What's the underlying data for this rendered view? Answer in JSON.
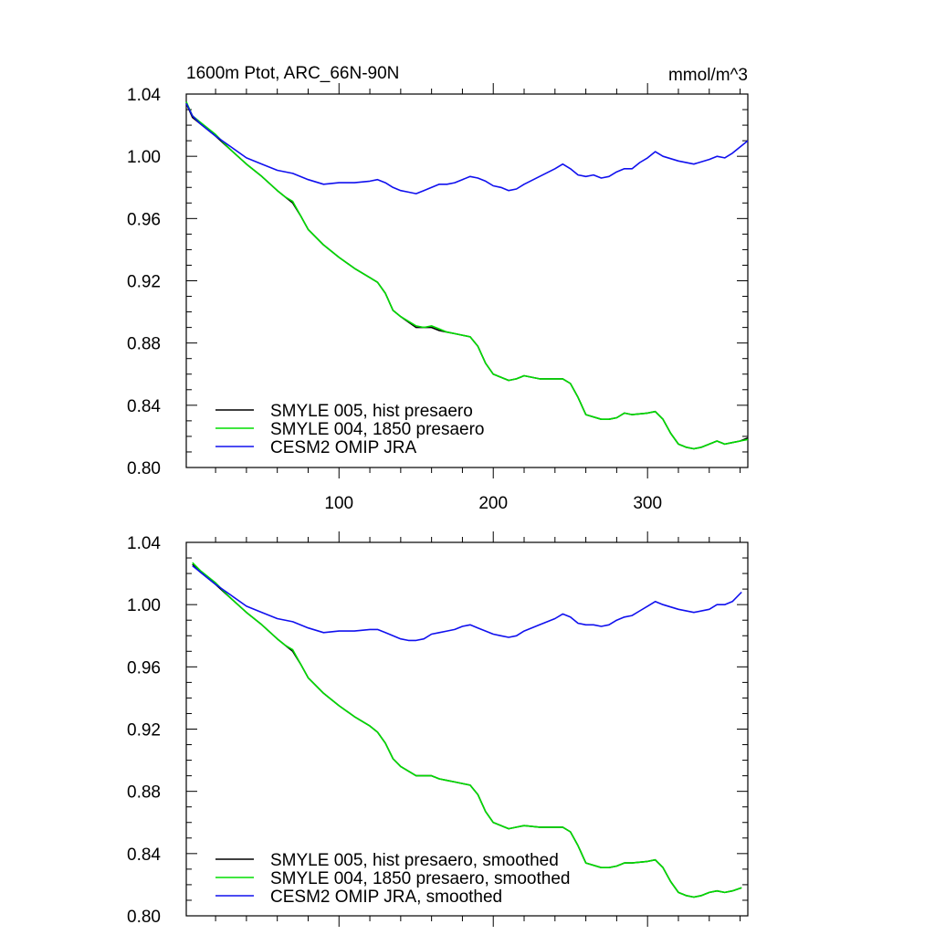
{
  "chart_data": [
    {
      "type": "line",
      "title_left": "1600m Ptot, ARC_66N-90N",
      "title_right": "mmol/m^3",
      "xlim": [
        1,
        365
      ],
      "ylim": [
        0.8,
        1.04
      ],
      "xticks": [
        100,
        200,
        300
      ],
      "xtick_labels": [
        "100",
        "200",
        "300"
      ],
      "yticks": [
        0.8,
        0.84,
        0.88,
        0.92,
        0.96,
        1.0,
        1.04
      ],
      "ytick_labels": [
        "0.80",
        "0.84",
        "0.88",
        "0.92",
        "0.96",
        "1.00",
        "1.04"
      ],
      "legend_placement": "bottom-left",
      "series": [
        {
          "name": "SMYLE 005, hist presaero",
          "color": "#000000",
          "x": [
            1,
            5,
            10,
            20,
            30,
            40,
            50,
            60,
            65,
            70,
            75,
            80,
            90,
            100,
            110,
            120,
            125,
            130,
            135,
            140,
            150,
            155,
            160,
            165,
            170,
            175,
            180,
            185,
            190,
            195,
            200,
            210,
            215,
            220,
            230,
            240,
            245,
            250,
            255,
            260,
            270,
            275,
            280,
            285,
            290,
            300,
            305,
            310,
            315,
            320,
            325,
            330,
            335,
            340,
            345,
            350,
            355,
            360,
            365
          ],
          "y": [
            1.034,
            1.025,
            1.021,
            1.013,
            1.004,
            0.995,
            0.987,
            0.978,
            0.974,
            0.97,
            0.962,
            0.953,
            0.943,
            0.935,
            0.928,
            0.922,
            0.919,
            0.912,
            0.901,
            0.897,
            0.89,
            0.89,
            0.89,
            0.888,
            0.887,
            0.886,
            0.885,
            0.884,
            0.878,
            0.867,
            0.86,
            0.856,
            0.857,
            0.859,
            0.857,
            0.857,
            0.857,
            0.854,
            0.845,
            0.834,
            0.831,
            0.831,
            0.832,
            0.835,
            0.834,
            0.835,
            0.836,
            0.831,
            0.822,
            0.815,
            0.813,
            0.812,
            0.813,
            0.815,
            0.817,
            0.815,
            0.816,
            0.817,
            0.819
          ]
        },
        {
          "name": "SMYLE 004, 1850 presaero",
          "color": "#00dd00",
          "x": [
            1,
            5,
            10,
            20,
            30,
            40,
            50,
            60,
            65,
            70,
            75,
            80,
            90,
            100,
            110,
            120,
            125,
            130,
            135,
            140,
            150,
            155,
            160,
            165,
            170,
            175,
            180,
            185,
            190,
            195,
            200,
            210,
            215,
            220,
            230,
            240,
            245,
            250,
            255,
            260,
            270,
            275,
            280,
            285,
            290,
            300,
            305,
            310,
            315,
            320,
            325,
            330,
            335,
            340,
            345,
            350,
            355,
            360,
            365
          ],
          "y": [
            1.035,
            1.026,
            1.022,
            1.014,
            1.004,
            0.995,
            0.987,
            0.978,
            0.974,
            0.971,
            0.962,
            0.953,
            0.943,
            0.935,
            0.928,
            0.922,
            0.919,
            0.912,
            0.901,
            0.897,
            0.891,
            0.89,
            0.891,
            0.889,
            0.887,
            0.886,
            0.885,
            0.884,
            0.878,
            0.867,
            0.86,
            0.856,
            0.857,
            0.859,
            0.857,
            0.857,
            0.857,
            0.854,
            0.845,
            0.834,
            0.831,
            0.831,
            0.832,
            0.835,
            0.834,
            0.835,
            0.836,
            0.831,
            0.822,
            0.815,
            0.813,
            0.812,
            0.813,
            0.815,
            0.817,
            0.815,
            0.816,
            0.817,
            0.818
          ]
        },
        {
          "name": "CESM2 OMIP JRA",
          "color": "#1010ee",
          "x": [
            1,
            5,
            10,
            20,
            30,
            40,
            50,
            60,
            70,
            80,
            90,
            100,
            110,
            120,
            125,
            130,
            135,
            140,
            145,
            150,
            155,
            160,
            165,
            170,
            175,
            180,
            185,
            190,
            195,
            200,
            205,
            210,
            215,
            220,
            230,
            240,
            245,
            250,
            255,
            260,
            265,
            270,
            275,
            280,
            285,
            290,
            295,
            300,
            305,
            310,
            320,
            330,
            340,
            345,
            350,
            355,
            360,
            365
          ],
          "y": [
            1.034,
            1.026,
            1.021,
            1.013,
            1.006,
            0.999,
            0.995,
            0.991,
            0.989,
            0.985,
            0.982,
            0.983,
            0.983,
            0.984,
            0.985,
            0.983,
            0.98,
            0.978,
            0.977,
            0.976,
            0.978,
            0.98,
            0.982,
            0.982,
            0.983,
            0.985,
            0.987,
            0.986,
            0.984,
            0.981,
            0.98,
            0.978,
            0.979,
            0.982,
            0.987,
            0.992,
            0.995,
            0.992,
            0.988,
            0.987,
            0.988,
            0.986,
            0.987,
            0.99,
            0.992,
            0.992,
            0.996,
            0.999,
            1.003,
            1.0,
            0.997,
            0.995,
            0.998,
            1.0,
            0.999,
            1.002,
            1.006,
            1.01
          ]
        }
      ]
    },
    {
      "type": "line",
      "title_left": "",
      "title_right": "",
      "xlim": [
        1,
        365
      ],
      "ylim": [
        0.8,
        1.04
      ],
      "xticks": [
        100,
        200,
        300
      ],
      "xtick_labels": [
        "",
        "",
        ""
      ],
      "yticks": [
        0.8,
        0.84,
        0.88,
        0.92,
        0.96,
        1.0,
        1.04
      ],
      "ytick_labels": [
        "0.80",
        "0.84",
        "0.88",
        "0.92",
        "0.96",
        "1.00",
        "1.04"
      ],
      "legend_placement": "bottom-left",
      "series": [
        {
          "name": "SMYLE 005, hist presaero, smoothed",
          "color": "#000000",
          "x": [
            5,
            10,
            20,
            30,
            40,
            50,
            60,
            65,
            70,
            75,
            80,
            90,
            100,
            110,
            120,
            125,
            130,
            135,
            140,
            150,
            155,
            160,
            165,
            170,
            175,
            180,
            185,
            190,
            195,
            200,
            210,
            215,
            220,
            230,
            240,
            245,
            250,
            255,
            260,
            270,
            275,
            280,
            285,
            290,
            300,
            305,
            310,
            315,
            320,
            325,
            330,
            335,
            340,
            345,
            350,
            355,
            361
          ],
          "y": [
            1.026,
            1.021,
            1.013,
            1.004,
            0.995,
            0.987,
            0.978,
            0.974,
            0.97,
            0.962,
            0.953,
            0.943,
            0.935,
            0.928,
            0.922,
            0.918,
            0.911,
            0.901,
            0.896,
            0.89,
            0.89,
            0.89,
            0.888,
            0.887,
            0.886,
            0.885,
            0.884,
            0.878,
            0.867,
            0.86,
            0.856,
            0.857,
            0.858,
            0.857,
            0.857,
            0.857,
            0.854,
            0.845,
            0.834,
            0.831,
            0.831,
            0.832,
            0.834,
            0.834,
            0.835,
            0.836,
            0.831,
            0.822,
            0.815,
            0.813,
            0.812,
            0.813,
            0.815,
            0.816,
            0.815,
            0.816,
            0.818
          ]
        },
        {
          "name": "SMYLE 004, 1850 presaero, smoothed",
          "color": "#00dd00",
          "x": [
            5,
            10,
            20,
            30,
            40,
            50,
            60,
            65,
            70,
            75,
            80,
            90,
            100,
            110,
            120,
            125,
            130,
            135,
            140,
            150,
            155,
            160,
            165,
            170,
            175,
            180,
            185,
            190,
            195,
            200,
            210,
            215,
            220,
            230,
            240,
            245,
            250,
            255,
            260,
            270,
            275,
            280,
            285,
            290,
            300,
            305,
            310,
            315,
            320,
            325,
            330,
            335,
            340,
            345,
            350,
            355,
            361
          ],
          "y": [
            1.027,
            1.022,
            1.014,
            1.004,
            0.995,
            0.987,
            0.978,
            0.974,
            0.971,
            0.962,
            0.953,
            0.943,
            0.935,
            0.928,
            0.922,
            0.918,
            0.911,
            0.901,
            0.896,
            0.89,
            0.89,
            0.89,
            0.888,
            0.887,
            0.886,
            0.885,
            0.884,
            0.878,
            0.867,
            0.86,
            0.856,
            0.857,
            0.858,
            0.857,
            0.857,
            0.857,
            0.854,
            0.845,
            0.834,
            0.831,
            0.831,
            0.832,
            0.834,
            0.834,
            0.835,
            0.836,
            0.831,
            0.822,
            0.815,
            0.813,
            0.812,
            0.813,
            0.815,
            0.816,
            0.815,
            0.816,
            0.818
          ]
        },
        {
          "name": "CESM2 OMIP JRA, smoothed",
          "color": "#1010ee",
          "x": [
            5,
            10,
            20,
            30,
            40,
            50,
            60,
            70,
            80,
            90,
            100,
            110,
            120,
            125,
            130,
            135,
            140,
            145,
            150,
            155,
            160,
            165,
            170,
            175,
            180,
            185,
            190,
            195,
            200,
            205,
            210,
            215,
            220,
            230,
            240,
            245,
            250,
            255,
            260,
            265,
            270,
            275,
            280,
            285,
            290,
            295,
            300,
            305,
            310,
            320,
            330,
            340,
            345,
            350,
            355,
            361
          ],
          "y": [
            1.025,
            1.021,
            1.013,
            1.006,
            0.999,
            0.995,
            0.991,
            0.989,
            0.985,
            0.982,
            0.983,
            0.983,
            0.984,
            0.984,
            0.982,
            0.98,
            0.978,
            0.977,
            0.977,
            0.978,
            0.981,
            0.982,
            0.983,
            0.984,
            0.986,
            0.987,
            0.985,
            0.983,
            0.981,
            0.98,
            0.979,
            0.98,
            0.983,
            0.987,
            0.991,
            0.994,
            0.992,
            0.988,
            0.987,
            0.987,
            0.986,
            0.987,
            0.99,
            0.992,
            0.993,
            0.996,
            0.999,
            1.002,
            1.0,
            0.997,
            0.995,
            0.997,
            1.0,
            1.0,
            1.002,
            1.008
          ]
        }
      ]
    }
  ]
}
